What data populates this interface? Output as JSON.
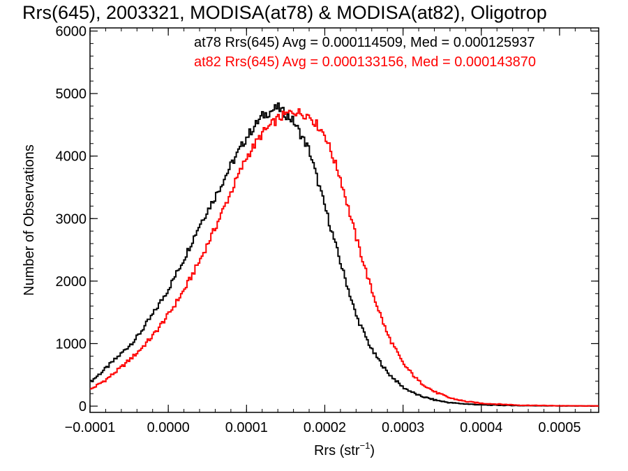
{
  "chart_data": {
    "type": "histogram-step",
    "title": "Rrs(645), 2003321, MODISA(at78) & MODISA(at82), Oligotrop",
    "xlabel": "Rrs (str",
    "xlabel_sup": "−1",
    "xlabel_close": ")",
    "ylabel": "Number of Observations",
    "xlim": [
      -0.0001,
      0.00055
    ],
    "ylim": [
      -100,
      6050
    ],
    "x_ticks": [
      -0.0001,
      0.0,
      0.0001,
      0.0002,
      0.0003,
      0.0004,
      0.0005
    ],
    "x_tick_labels": [
      "−0.0001",
      "0.0000",
      "0.0001",
      "0.0002",
      "0.0003",
      "0.0004",
      "0.0005"
    ],
    "y_ticks": [
      0,
      1000,
      2000,
      3000,
      4000,
      5000,
      6000
    ],
    "y_tick_labels": [
      "0",
      "1000",
      "2000",
      "3000",
      "4000",
      "5000",
      "6000"
    ],
    "grid": false,
    "legend_position": "top-right",
    "series": [
      {
        "name": "at78",
        "color": "#000000",
        "label": "at78 Rrs(645) Avg = 0.000114509, Med = 0.000125937",
        "x": [
          -0.0001,
          -8e-05,
          -6e-05,
          -4e-05,
          -2e-05,
          0.0,
          2e-05,
          4e-05,
          6e-05,
          8e-05,
          0.0001,
          0.00012,
          0.00014,
          0.00016,
          0.00018,
          0.0002,
          0.00022,
          0.00024,
          0.00026,
          0.00028,
          0.0003,
          0.00032,
          0.00034,
          0.00036,
          0.00038,
          0.0004,
          0.00045,
          0.0005,
          0.00055
        ],
        "y": [
          380,
          600,
          840,
          1100,
          1460,
          1870,
          2350,
          2900,
          3350,
          3850,
          4300,
          4640,
          4780,
          4560,
          4100,
          3200,
          2300,
          1450,
          900,
          540,
          300,
          170,
          100,
          55,
          35,
          20,
          8,
          4,
          2
        ]
      },
      {
        "name": "at82",
        "color": "#ff0000",
        "label": "at82 Rrs(645) Avg = 0.000133156, Med = 0.000143870",
        "x": [
          -0.0001,
          -8e-05,
          -6e-05,
          -4e-05,
          -2e-05,
          0.0,
          2e-05,
          4e-05,
          6e-05,
          8e-05,
          0.0001,
          0.00012,
          0.00014,
          0.00016,
          0.00018,
          0.0002,
          0.00022,
          0.00024,
          0.00026,
          0.00028,
          0.0003,
          0.00032,
          0.00034,
          0.00036,
          0.00038,
          0.0004,
          0.00045,
          0.0005,
          0.00055
        ],
        "y": [
          260,
          420,
          620,
          850,
          1120,
          1460,
          1850,
          2320,
          2850,
          3420,
          3980,
          4360,
          4600,
          4720,
          4650,
          4350,
          3650,
          2700,
          1850,
          1150,
          680,
          400,
          230,
          130,
          75,
          45,
          15,
          6,
          3
        ]
      }
    ]
  }
}
